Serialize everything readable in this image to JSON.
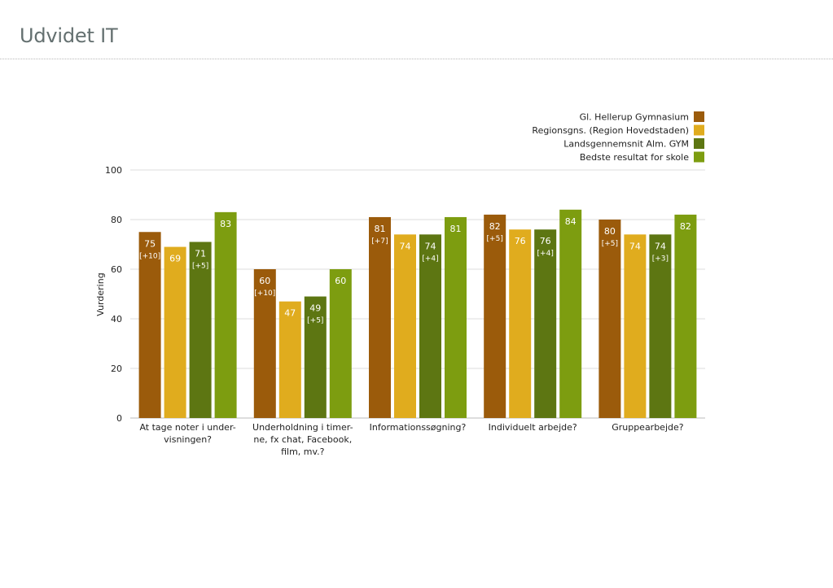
{
  "page": {
    "title": "Udvidet IT"
  },
  "chart_data": {
    "type": "bar",
    "ylabel": "Vurdering",
    "xlabel": "",
    "ylim": [
      0,
      100
    ],
    "yticks": [
      0,
      20,
      40,
      60,
      80,
      100
    ],
    "grid": true,
    "legend_position": "top-right",
    "categories": [
      [
        "At tage noter i under-",
        "visningen?"
      ],
      [
        "Underholdning i timer-",
        "ne, fx chat, Facebook,",
        "film, mv.?"
      ],
      [
        "Informationssøgning?"
      ],
      [
        "Individuelt arbejde?"
      ],
      [
        "Gruppearbejde?"
      ]
    ],
    "series": [
      {
        "name": "Gl. Hellerup Gymnasium",
        "color": "#9b5b0b",
        "values": [
          75,
          60,
          81,
          82,
          80
        ],
        "diffs": [
          "[+10]",
          "[+10]",
          "[+7]",
          "[+5]",
          "[+5]"
        ]
      },
      {
        "name": "Regionsgns. (Region Hovedstaden)",
        "color": "#e0ac1e",
        "values": [
          69,
          47,
          74,
          76,
          74
        ],
        "diffs": [
          "",
          "",
          "",
          "",
          ""
        ]
      },
      {
        "name": "Landsgennemsnit Alm. GYM",
        "color": "#5d7612",
        "values": [
          71,
          49,
          74,
          76,
          74
        ],
        "diffs": [
          "[+5]",
          "[+5]",
          "[+4]",
          "[+4]",
          "[+3]"
        ]
      },
      {
        "name": "Bedste resultat for skole",
        "color": "#7d9d10",
        "values": [
          83,
          60,
          81,
          84,
          82
        ],
        "diffs": [
          "",
          "",
          "",
          "",
          ""
        ]
      }
    ]
  }
}
